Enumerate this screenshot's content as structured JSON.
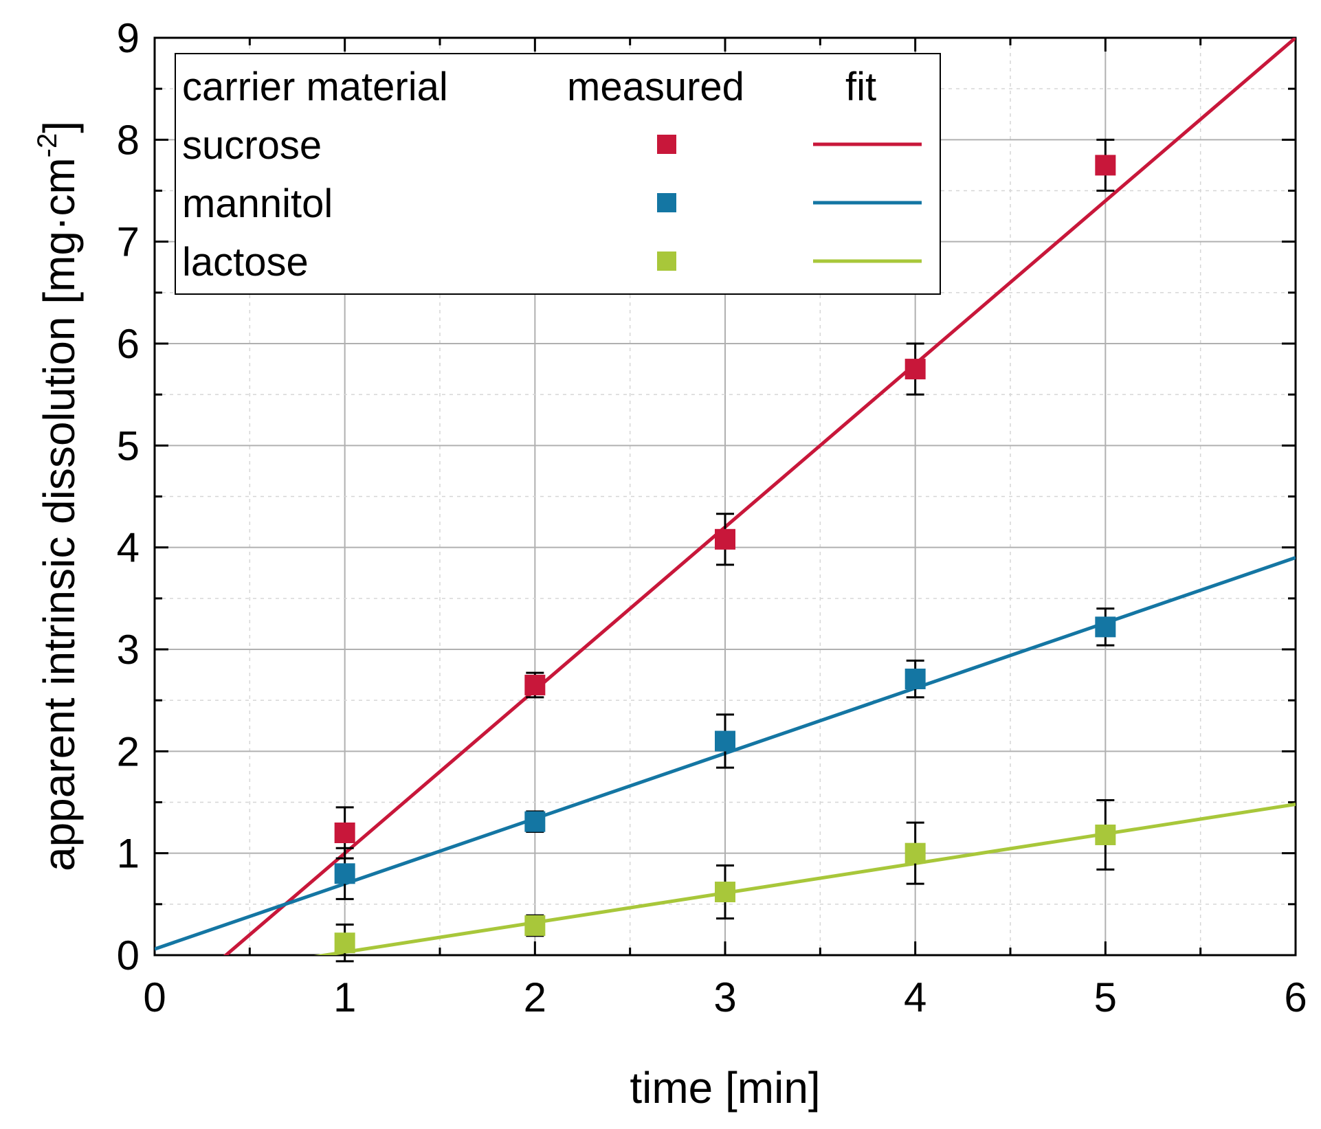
{
  "chart_data": {
    "type": "scatter",
    "xlabel": "time [min]",
    "ylabel_main": "apparent intrinsic dissolution [mg·cm",
    "ylabel_exp": "-2",
    "ylabel_close": "]",
    "xlim": [
      0,
      6
    ],
    "ylim": [
      0,
      9
    ],
    "xticks": [
      0,
      1,
      2,
      3,
      4,
      5,
      6
    ],
    "yticks": [
      0,
      1,
      2,
      3,
      4,
      5,
      6,
      7,
      8,
      9
    ],
    "x_tick_labels": [
      "0",
      "1",
      "2",
      "3",
      "4",
      "5",
      "6"
    ],
    "y_tick_labels": [
      "0",
      "1",
      "2",
      "3",
      "4",
      "5",
      "6",
      "7",
      "8",
      "9"
    ],
    "grid": true,
    "legend": {
      "position": "top-left",
      "header_material": "carrier material",
      "header_measured": "measured",
      "header_fit": "fit"
    },
    "series": [
      {
        "name": "sucrose",
        "color": "#c8173a",
        "x": [
          1,
          2,
          3,
          4,
          5
        ],
        "y": [
          1.2,
          2.65,
          4.08,
          5.75,
          7.75
        ],
        "err": [
          0.25,
          0.12,
          0.25,
          0.25,
          0.25
        ],
        "fit": {
          "slope": 1.6,
          "intercept": -0.6
        }
      },
      {
        "name": "mannitol",
        "color": "#1476a3",
        "x": [
          1,
          2,
          3,
          4,
          5
        ],
        "y": [
          0.8,
          1.31,
          2.1,
          2.71,
          3.22
        ],
        "err": [
          0.25,
          0.1,
          0.26,
          0.18,
          0.18
        ],
        "fit": {
          "slope": 0.64,
          "intercept": 0.06
        }
      },
      {
        "name": "lactose",
        "color": "#a8c73a",
        "x": [
          1,
          2,
          3,
          4,
          5
        ],
        "y": [
          0.12,
          0.29,
          0.62,
          1.0,
          1.18
        ],
        "err": [
          0.18,
          0.1,
          0.26,
          0.3,
          0.34
        ],
        "fit": {
          "slope": 0.29,
          "intercept": -0.26
        }
      }
    ]
  }
}
